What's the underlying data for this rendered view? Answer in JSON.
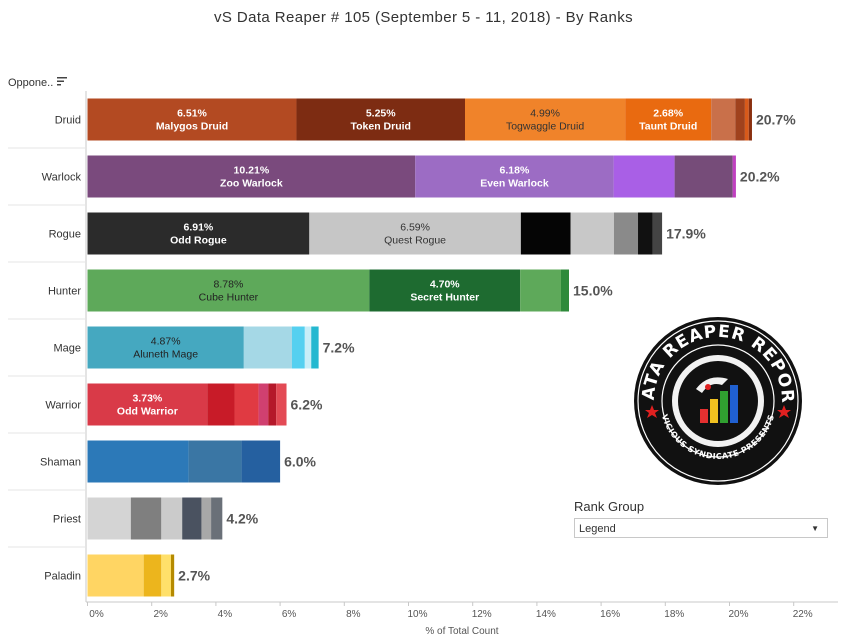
{
  "title": "vS Data Reaper #  105 (September 5 - 11, 2018) - By Ranks",
  "row_header": "Oppone..",
  "rank_group": {
    "title": "Rank Group",
    "selected": "Legend"
  },
  "logo": {
    "top_text": "DATA REAPER REPORT",
    "bottom_text": "VICIOUS SYNDICATE PRESENTS"
  },
  "chart_data": {
    "type": "bar",
    "orientation": "horizontal",
    "stacked": true,
    "xlabel": "% of Total Count",
    "xlim": [
      0,
      22
    ],
    "xticks": [
      "0%",
      "2%",
      "4%",
      "6%",
      "8%",
      "10%",
      "12%",
      "14%",
      "16%",
      "18%",
      "20%",
      "22%"
    ],
    "categories": [
      "Druid",
      "Warlock",
      "Rogue",
      "Hunter",
      "Mage",
      "Warrior",
      "Shaman",
      "Priest",
      "Paladin"
    ],
    "totals": [
      "20.7%",
      "20.2%",
      "17.9%",
      "15.0%",
      "7.2%",
      "6.2%",
      "6.0%",
      "4.2%",
      "2.7%"
    ],
    "segments": [
      [
        {
          "v": 6.51,
          "c": "#b34a22",
          "pct": "6.51%",
          "name": "Malygos Druid",
          "tc": "#ffffff"
        },
        {
          "v": 5.25,
          "c": "#7d2c12",
          "pct": "5.25%",
          "name": "Token Druid",
          "tc": "#ffffff"
        },
        {
          "v": 4.99,
          "c": "#f0832a",
          "pct": "4.99%",
          "name": "Togwaggle Druid",
          "tc": "#333333"
        },
        {
          "v": 2.68,
          "c": "#e96a10",
          "pct": "2.68%",
          "name": "Taunt Druid",
          "tc": "#ffffff"
        },
        {
          "v": 0.75,
          "c": "#c9704a",
          "c2": "#c9704a"
        },
        {
          "v": 0.3,
          "c": "#a0421d"
        },
        {
          "v": 0.12,
          "c": "#d85a1a"
        },
        {
          "v": 0.1,
          "c": "#8a3010"
        }
      ],
      [
        {
          "v": 10.21,
          "c": "#7a4a7d",
          "pct": "10.21%",
          "name": "Zoo Warlock",
          "tc": "#ffffff"
        },
        {
          "v": 6.18,
          "c": "#9c6cc4",
          "pct": "6.18%",
          "name": "Even Warlock",
          "tc": "#ffffff"
        },
        {
          "v": 1.9,
          "c": "#a95fe6"
        },
        {
          "v": 1.81,
          "c": "#764c79"
        },
        {
          "v": 0.1,
          "c": "#c040c0"
        }
      ],
      [
        {
          "v": 6.91,
          "c": "#2b2b2b",
          "pct": "6.91%",
          "name": "Odd Rogue",
          "tc": "#ffffff"
        },
        {
          "v": 6.59,
          "c": "#c6c6c6",
          "pct": "6.59%",
          "name": "Quest Rogue",
          "tc": "#333333"
        },
        {
          "v": 1.55,
          "c": "#050505"
        },
        {
          "v": 1.35,
          "c": "#c8c8c8"
        },
        {
          "v": 0.75,
          "c": "#8a8a8a"
        },
        {
          "v": 0.45,
          "c": "#111111"
        },
        {
          "v": 0.3,
          "c": "#444444"
        }
      ],
      [
        {
          "v": 8.78,
          "c": "#5ea95a",
          "pct": "8.78%",
          "name": "Cube Hunter",
          "tc": "#222222"
        },
        {
          "v": 4.7,
          "c": "#1e6b30",
          "pct": "4.70%",
          "name": "Secret Hunter",
          "tc": "#ffffff"
        },
        {
          "v": 1.27,
          "c": "#5ea95a"
        },
        {
          "v": 0.25,
          "c": "#2e8a3a"
        }
      ],
      [
        {
          "v": 4.87,
          "c": "#45a8c0",
          "pct": "4.87%",
          "name": "Aluneth Mage",
          "tc": "#222222"
        },
        {
          "v": 1.5,
          "c": "#a5d8e6"
        },
        {
          "v": 0.4,
          "c": "#55d0f0"
        },
        {
          "v": 0.2,
          "c": "#c8eef8"
        },
        {
          "v": 0.23,
          "c": "#24b8d0"
        }
      ],
      [
        {
          "v": 3.73,
          "c": "#d93a48",
          "pct": "3.73%",
          "name": "Odd Warrior",
          "tc": "#ffffff"
        },
        {
          "v": 0.85,
          "c": "#c81b28"
        },
        {
          "v": 0.75,
          "c": "#e03a42"
        },
        {
          "v": 0.3,
          "c": "#d04070"
        },
        {
          "v": 0.25,
          "c": "#b5182a"
        },
        {
          "v": 0.32,
          "c": "#e34a55"
        }
      ],
      [
        {
          "v": 3.15,
          "c": "#2c79b8"
        },
        {
          "v": 1.65,
          "c": "#3a76a4"
        },
        {
          "v": 1.2,
          "c": "#2560a0"
        }
      ],
      [
        {
          "v": 1.35,
          "c": "#d4d4d4"
        },
        {
          "v": 0.95,
          "c": "#7f7f7f"
        },
        {
          "v": 0.65,
          "c": "#cbcbcb"
        },
        {
          "v": 0.6,
          "c": "#4a5260"
        },
        {
          "v": 0.3,
          "c": "#a8a8a8"
        },
        {
          "v": 0.35,
          "c": "#6a7078"
        }
      ],
      [
        {
          "v": 1.75,
          "c": "#ffd563"
        },
        {
          "v": 0.55,
          "c": "#ecb51d"
        },
        {
          "v": 0.3,
          "c": "#ffe06a"
        },
        {
          "v": 0.1,
          "c": "#b58a00"
        }
      ]
    ]
  }
}
